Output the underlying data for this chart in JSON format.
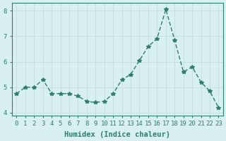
{
  "x": [
    0,
    1,
    2,
    3,
    4,
    5,
    6,
    7,
    8,
    9,
    10,
    11,
    12,
    13,
    14,
    15,
    16,
    17,
    18,
    19,
    20,
    21,
    22,
    23
  ],
  "y": [
    4.75,
    5.0,
    5.0,
    5.3,
    4.75,
    4.75,
    4.75,
    4.65,
    4.45,
    4.4,
    4.45,
    4.75,
    5.3,
    5.5,
    6.05,
    6.6,
    6.9,
    8.05,
    6.85,
    5.6,
    5.8,
    5.2,
    4.85,
    4.2
  ],
  "line_color": "#2e7d6e",
  "marker": "*",
  "marker_size": 4,
  "bg_color": "#d8f0ef",
  "grid_color": "#c8e0df",
  "axis_color": "#2e7d6e",
  "xlabel": "Humidex (Indice chaleur)",
  "ylabel": "",
  "xlim": [
    -0.5,
    23.5
  ],
  "ylim": [
    3.9,
    8.3
  ],
  "yticks": [
    4,
    5,
    6,
    7,
    8
  ],
  "xticks": [
    0,
    1,
    2,
    3,
    4,
    5,
    6,
    7,
    8,
    9,
    10,
    11,
    12,
    13,
    14,
    15,
    16,
    17,
    18,
    19,
    20,
    21,
    22,
    23
  ],
  "tick_fontsize": 6.5,
  "label_fontsize": 7.5,
  "title": ""
}
